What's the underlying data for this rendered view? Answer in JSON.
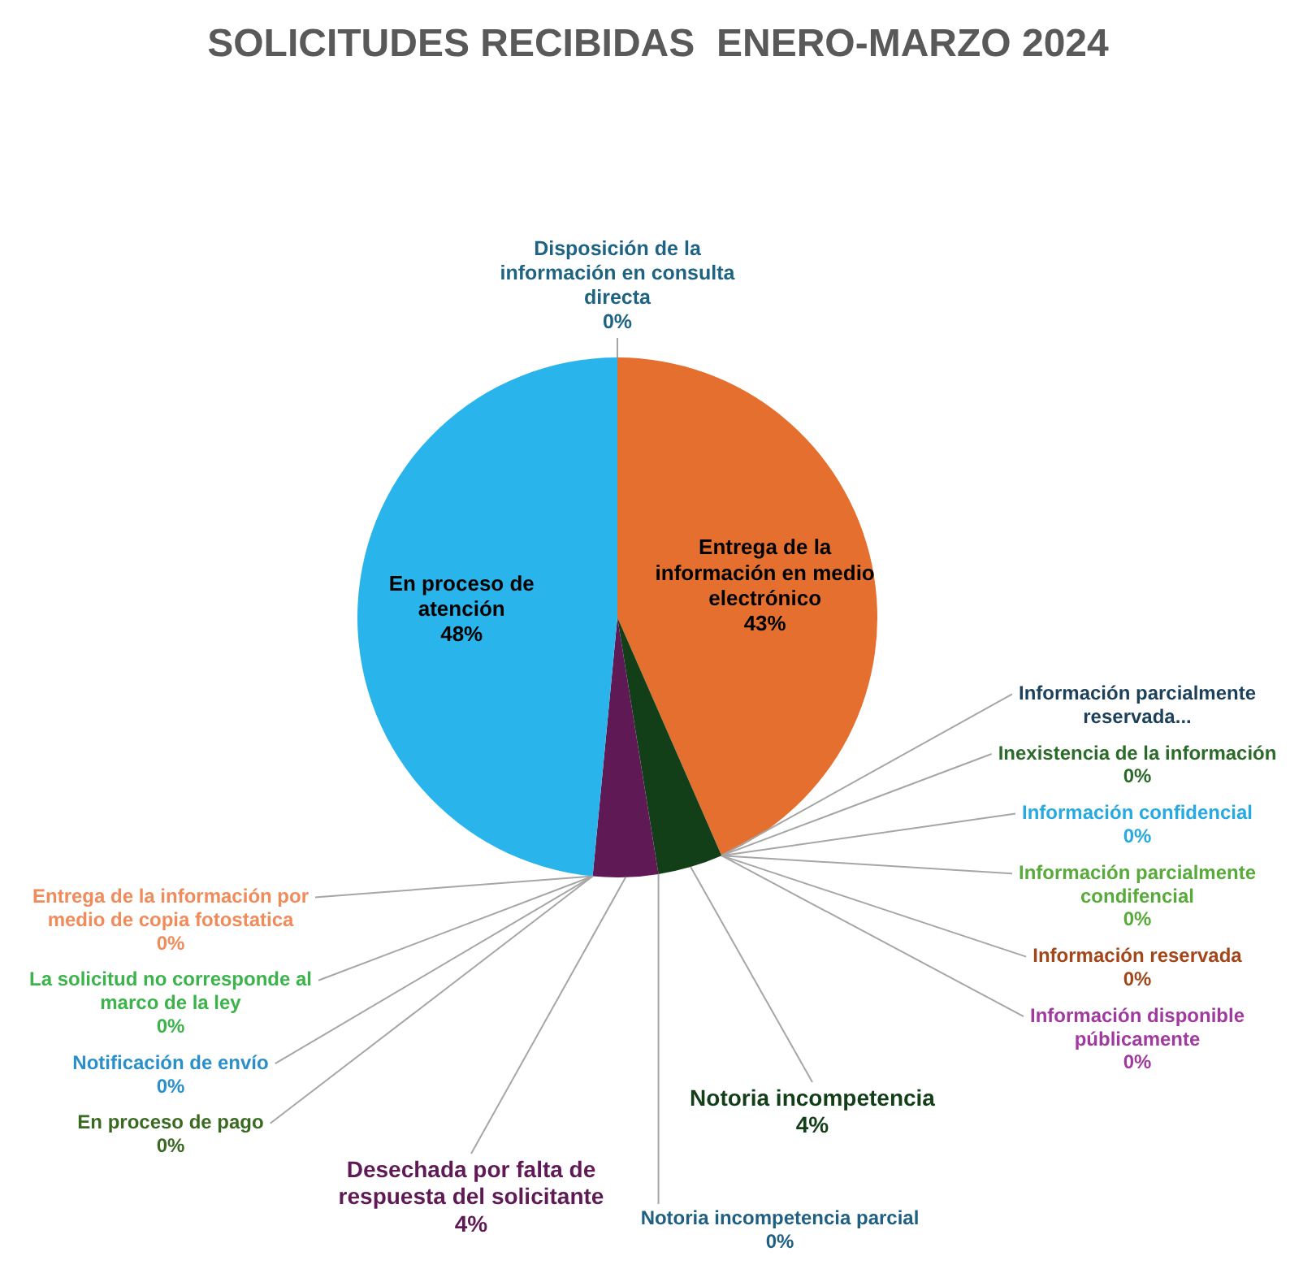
{
  "chart_data": {
    "type": "pie",
    "title": "SOLICITUDES RECIBIDAS  ENERO-MARZO 2024",
    "categories": [
      "Disposición de la información en consulta directa",
      "Entrega de la información en medio electrónico",
      "Información parcialmente reservada...",
      "Inexistencia de la información",
      "Información confidencial",
      "Información parcialmente condifencial",
      "Información reservada",
      "Información disponible públicamente",
      "Notoria incompetencia",
      "Notoria incompetencia parcial",
      "Desechada por falta de respuesta del solicitante",
      "Entrega de la información por medio de copia fotostatica",
      "La solicitud no corresponde al marco de la ley",
      "Notificación de envío",
      "En proceso de pago",
      "En proceso de atención"
    ],
    "values": [
      0,
      43,
      0,
      0,
      0,
      0,
      0,
      0,
      4,
      0,
      4,
      0,
      0,
      0,
      0,
      48
    ],
    "colors": [
      "#1f6383",
      "#e46f2f",
      "#1c3f5a",
      "#2b6a29",
      "#27a9e1",
      "#58ab3b",
      "#a3461a",
      "#a13a9f",
      "#123f18",
      "#1e5f82",
      "#5f1a56",
      "#f08c5c",
      "#3cb44b",
      "#2a8fcb",
      "#3a6a22",
      "#29b5ec"
    ],
    "value_labels": [
      "0%",
      "43%",
      null,
      "0%",
      "0%",
      "0%",
      "0%",
      "0%",
      "4%",
      "0%",
      "4%",
      "0%",
      "0%",
      "0%",
      "0%",
      "48%"
    ]
  }
}
